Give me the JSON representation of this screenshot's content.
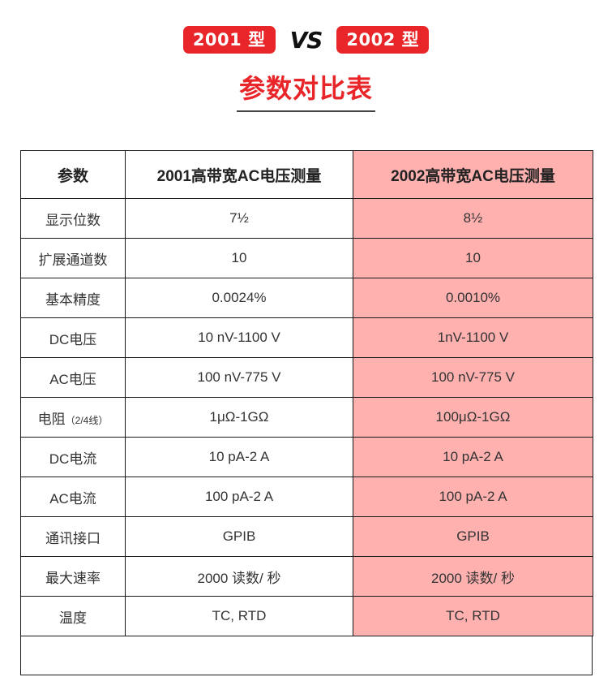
{
  "header": {
    "badge_left": "2001 型",
    "vs": "VS",
    "badge_right": "2002 型",
    "title": "参数对比表"
  },
  "table": {
    "columns": [
      "参数",
      "2001高带宽AC电压测量",
      "2002高带宽AC电压测量"
    ],
    "rows": [
      {
        "param": "显示位数",
        "note": "",
        "m2001": "7½",
        "m2002": "8½"
      },
      {
        "param": "扩展通道数",
        "note": "",
        "m2001": "10",
        "m2002": "10"
      },
      {
        "param": "基本精度",
        "note": "",
        "m2001": "0.0024%",
        "m2002": "0.0010%"
      },
      {
        "param": "DC电压",
        "note": "",
        "m2001": "10 nV-1100 V",
        "m2002": "1nV-1100 V"
      },
      {
        "param": "AC电压",
        "note": "",
        "m2001": "100 nV-775 V",
        "m2002": "100 nV-775 V"
      },
      {
        "param": "电阻",
        "note": "（2/4线）",
        "m2001": "1μΩ-1GΩ",
        "m2002": "100μΩ-1GΩ"
      },
      {
        "param": "DC电流",
        "note": "",
        "m2001": "10 pA-2 A",
        "m2002": "10 pA-2 A"
      },
      {
        "param": "AC电流",
        "note": "",
        "m2001": "100 pA-2 A",
        "m2002": "100 pA-2 A"
      },
      {
        "param": "通讯接口",
        "note": "",
        "m2001": "GPIB",
        "m2002": "GPIB"
      },
      {
        "param": "最大速率",
        "note": "",
        "m2001": "2000 读数/ 秒",
        "m2002": "2000 读数/ 秒"
      },
      {
        "param": "温度",
        "note": "",
        "m2001": "TC, RTD",
        "m2002": "TC, RTD"
      }
    ]
  },
  "colors": {
    "accent_red": "#e8262a",
    "highlight_pink": "#ffb1b0"
  }
}
